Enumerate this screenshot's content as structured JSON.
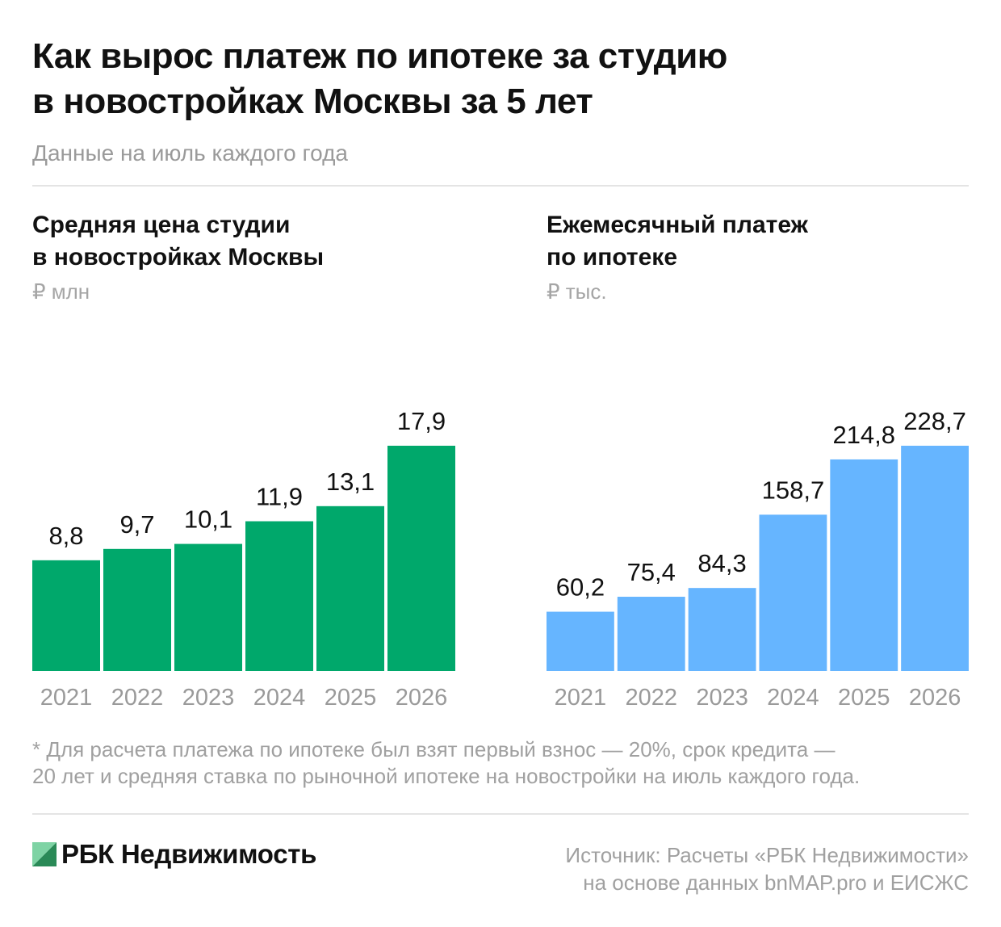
{
  "header": {
    "title_lines": [
      "Как вырос платеж по ипотеке за студию",
      "в новостройках Москвы за 5 лет"
    ],
    "subtitle": "Данные на июль каждого года"
  },
  "colors": {
    "left_bars": "#00a86b",
    "right_bars": "#66b5ff",
    "muted_text": "#9a9a9a"
  },
  "chart_data": [
    {
      "type": "bar",
      "title_lines": [
        "Средняя цена студии",
        "в новостройках Москвы"
      ],
      "unit": "₽ млн",
      "categories": [
        "2021",
        "2022",
        "2023",
        "2024",
        "2025",
        "2026"
      ],
      "values": [
        8.8,
        9.7,
        10.1,
        11.9,
        13.1,
        17.9
      ],
      "value_labels": [
        "8,8",
        "9,7",
        "10,1",
        "11,9",
        "13,1",
        "17,9"
      ],
      "ylim": [
        0,
        17.9
      ],
      "grid": false,
      "color": "#00a86b"
    },
    {
      "type": "bar",
      "title_lines": [
        "Ежемесячный платеж",
        "по ипотеке"
      ],
      "unit": "₽ тыс.",
      "categories": [
        "2021",
        "2022",
        "2023",
        "2024",
        "2025",
        "2026"
      ],
      "values": [
        60.2,
        75.4,
        84.3,
        158.7,
        214.8,
        228.7
      ],
      "value_labels": [
        "60,2",
        "75,4",
        "84,3",
        "158,7",
        "214,8",
        "228,7"
      ],
      "ylim": [
        0,
        228.7
      ],
      "grid": false,
      "color": "#66b5ff"
    }
  ],
  "footnote_lines": [
    "* Для расчета платежа по ипотеке был взят первый взнос — 20%, срок кредита —",
    "20 лет и средняя ставка по рыночной ипотеке на новостройки на июль каждого года."
  ],
  "footer": {
    "logo_text": "РБК Недвижимость",
    "source_lines": [
      "Источник: Расчеты «РБК Недвижимости»",
      "на основе данных bnMAP.pro и ЕИСЖС"
    ]
  }
}
